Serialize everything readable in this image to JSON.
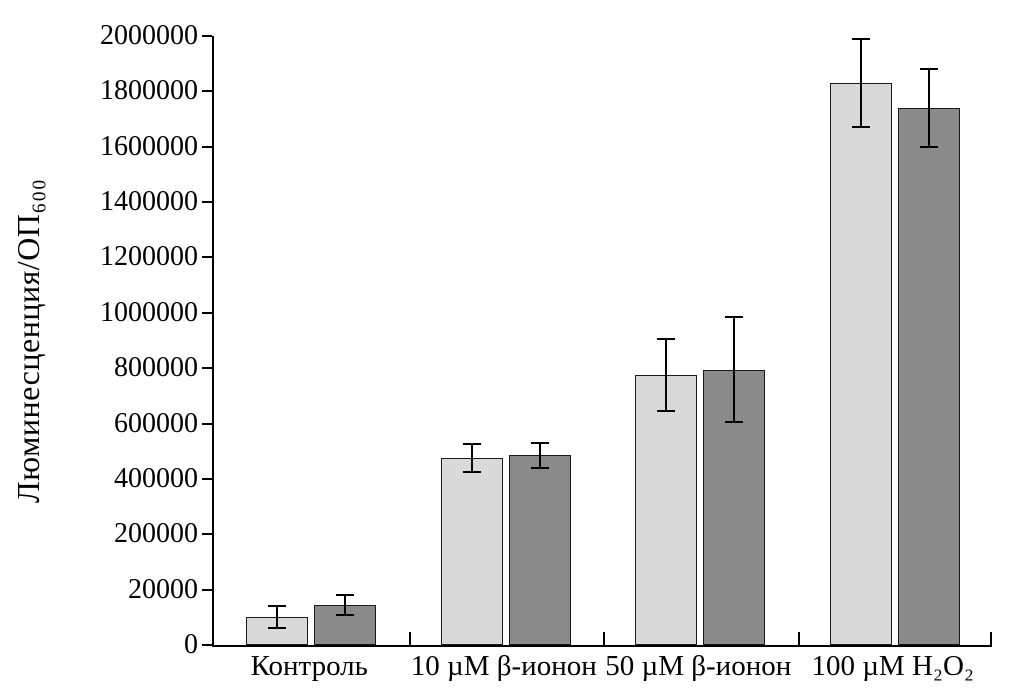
{
  "chart_data": {
    "type": "bar",
    "title": "",
    "xlabel": "",
    "ylabel": "Люминесценция/ОП₆₀₀",
    "grid": false,
    "legend": "none",
    "y_ticks": [
      0,
      20000,
      200000,
      400000,
      600000,
      800000,
      1000000,
      1200000,
      1400000,
      1600000,
      1800000,
      2000000
    ],
    "ylim": [
      0,
      2000000
    ],
    "categories": [
      "Контроль",
      "10 µM β-ионон",
      "50 µM β-ионон",
      "100 µM H₂O₂"
    ],
    "series": [
      {
        "name": "light-gray-bars",
        "color": "#d9d9d9",
        "values": [
          10000,
          475000,
          775000,
          1830000
        ],
        "errors": [
          4000,
          50000,
          130000,
          160000
        ]
      },
      {
        "name": "dark-gray-bars",
        "color": "#8a8a8a",
        "values": [
          14500,
          485000,
          795000,
          1740000
        ],
        "errors": [
          3500,
          45000,
          190000,
          140000
        ]
      }
    ]
  }
}
